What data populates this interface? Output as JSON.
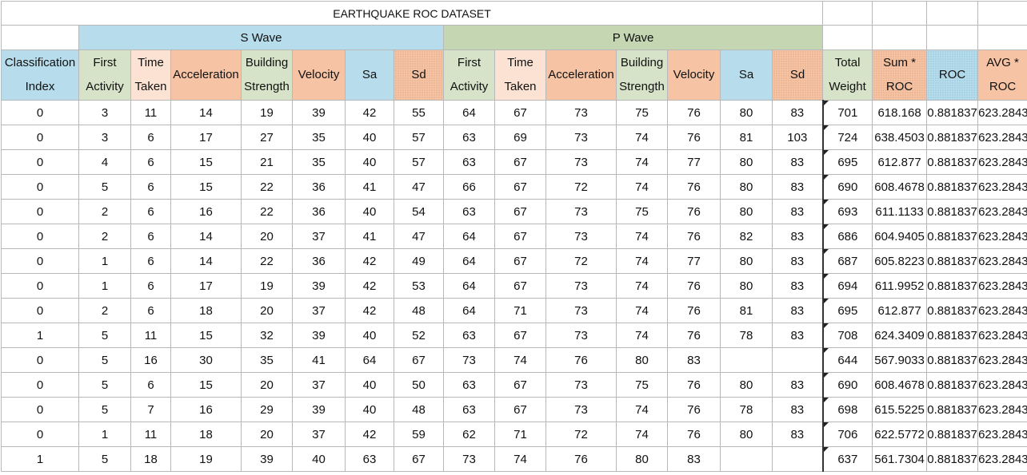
{
  "title": "EARTHQUAKE ROC DATASET",
  "groups": {
    "s_wave": "S Wave",
    "p_wave": "P Wave"
  },
  "columns": [
    "Classification Index",
    "First Activity",
    "Time Taken",
    "Acceleration",
    "Building Strength",
    "Velocity",
    "Sa",
    "Sd",
    "First Activity",
    "Time Taken",
    "Acceleration",
    "Building Strength",
    "Velocity",
    "Sa",
    "Sd",
    "Total Weight",
    "Sum * ROC",
    "ROC",
    "AVG * ROC"
  ],
  "header_colors": {
    "s_wave_group": "#b7dceb",
    "p_wave_group": "#c4d7b2",
    "orange": "#f6c4a4",
    "blue": "#b7dceb",
    "green": "#d6e3c8"
  },
  "rows": [
    [
      "0",
      "3",
      "11",
      "14",
      "19",
      "39",
      "42",
      "55",
      "64",
      "67",
      "73",
      "75",
      "76",
      "80",
      "83",
      "701",
      "618.168",
      "0.881837",
      "623.2843"
    ],
    [
      "0",
      "3",
      "6",
      "17",
      "27",
      "35",
      "40",
      "57",
      "63",
      "69",
      "73",
      "74",
      "76",
      "81",
      "103",
      "724",
      "638.4503",
      "0.881837",
      "623.2843"
    ],
    [
      "0",
      "4",
      "6",
      "15",
      "21",
      "35",
      "40",
      "57",
      "63",
      "67",
      "73",
      "74",
      "77",
      "80",
      "83",
      "695",
      "612.877",
      "0.881837",
      "623.2843"
    ],
    [
      "0",
      "5",
      "6",
      "15",
      "22",
      "36",
      "41",
      "47",
      "66",
      "67",
      "72",
      "74",
      "76",
      "80",
      "83",
      "690",
      "608.4678",
      "0.881837",
      "623.2843"
    ],
    [
      "0",
      "2",
      "6",
      "16",
      "22",
      "36",
      "40",
      "54",
      "63",
      "67",
      "73",
      "75",
      "76",
      "80",
      "83",
      "693",
      "611.1133",
      "0.881837",
      "623.2843"
    ],
    [
      "0",
      "2",
      "6",
      "14",
      "20",
      "37",
      "41",
      "47",
      "64",
      "67",
      "73",
      "74",
      "76",
      "82",
      "83",
      "686",
      "604.9405",
      "0.881837",
      "623.2843"
    ],
    [
      "0",
      "1",
      "6",
      "14",
      "22",
      "36",
      "42",
      "49",
      "64",
      "67",
      "72",
      "74",
      "77",
      "80",
      "83",
      "687",
      "605.8223",
      "0.881837",
      "623.2843"
    ],
    [
      "0",
      "1",
      "6",
      "17",
      "19",
      "39",
      "42",
      "53",
      "64",
      "67",
      "73",
      "74",
      "76",
      "80",
      "83",
      "694",
      "611.9952",
      "0.881837",
      "623.2843"
    ],
    [
      "0",
      "2",
      "6",
      "18",
      "20",
      "37",
      "42",
      "48",
      "64",
      "71",
      "73",
      "74",
      "76",
      "81",
      "83",
      "695",
      "612.877",
      "0.881837",
      "623.2843"
    ],
    [
      "1",
      "5",
      "11",
      "15",
      "32",
      "39",
      "40",
      "52",
      "63",
      "67",
      "73",
      "74",
      "76",
      "78",
      "83",
      "708",
      "624.3409",
      "0.881837",
      "623.2843"
    ],
    [
      "0",
      "5",
      "16",
      "30",
      "35",
      "41",
      "64",
      "67",
      "73",
      "74",
      "76",
      "80",
      "83",
      "",
      "",
      "644",
      "567.9033",
      "0.881837",
      "623.2843"
    ],
    [
      "0",
      "5",
      "6",
      "15",
      "20",
      "37",
      "40",
      "50",
      "63",
      "67",
      "73",
      "75",
      "76",
      "80",
      "83",
      "690",
      "608.4678",
      "0.881837",
      "623.2843"
    ],
    [
      "0",
      "5",
      "7",
      "16",
      "29",
      "39",
      "40",
      "48",
      "63",
      "67",
      "73",
      "74",
      "76",
      "78",
      "83",
      "698",
      "615.5225",
      "0.881837",
      "623.2843"
    ],
    [
      "0",
      "1",
      "11",
      "18",
      "20",
      "37",
      "42",
      "59",
      "62",
      "71",
      "72",
      "74",
      "76",
      "80",
      "83",
      "706",
      "622.5772",
      "0.881837",
      "623.2843"
    ],
    [
      "1",
      "5",
      "18",
      "19",
      "39",
      "40",
      "63",
      "67",
      "73",
      "74",
      "76",
      "80",
      "83",
      "",
      "",
      "637",
      "561.7304",
      "0.881837",
      "623.2843"
    ]
  ]
}
